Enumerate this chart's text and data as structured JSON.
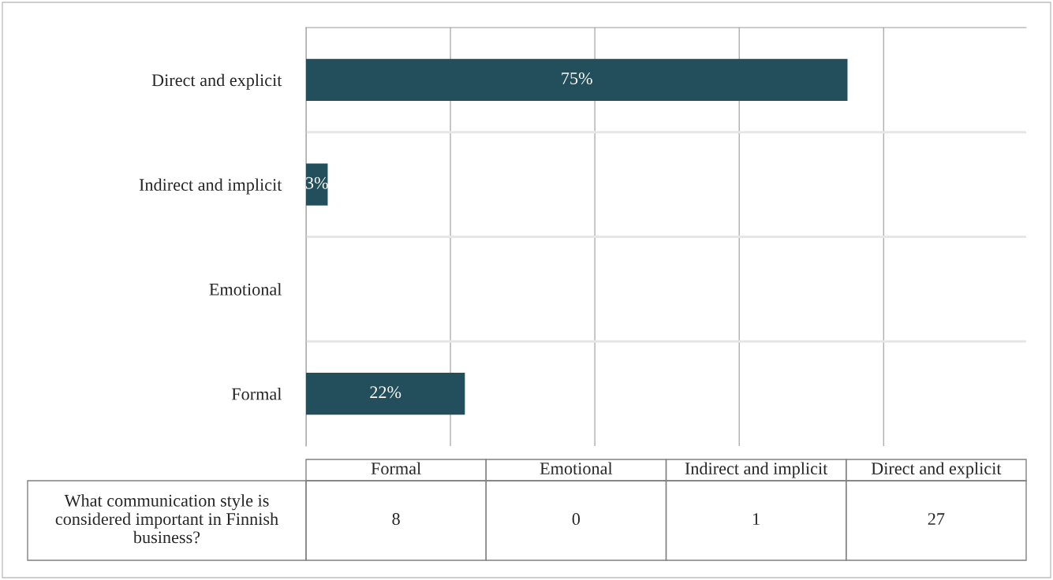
{
  "chart_data": {
    "type": "bar",
    "orientation": "horizontal",
    "categories": [
      "Direct and explicit",
      "Indirect and implicit",
      "Emotional",
      "Formal"
    ],
    "values": [
      75,
      3,
      0,
      22
    ],
    "value_labels": [
      "75%",
      "3%",
      null,
      "22%"
    ],
    "color": "#234e5c",
    "grid": "x",
    "annotations": [
      "What communication style is\nconsidered important in Finnish\nbusiness?",
      "8",
      "0",
      "1",
      "27"
    ]
  }
}
